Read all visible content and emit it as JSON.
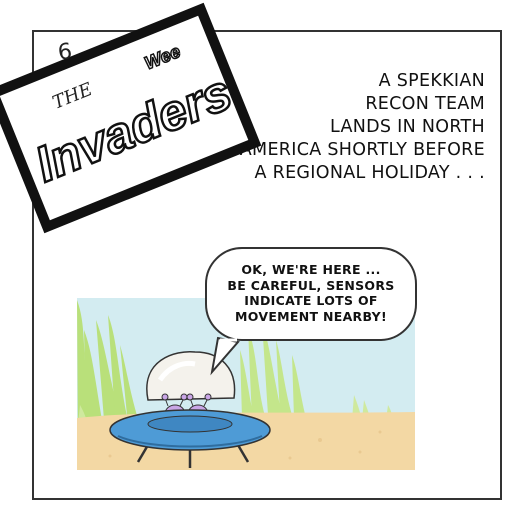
{
  "logo": {
    "line1": "THE",
    "line2": "Wee",
    "line3": "Invaders"
  },
  "page_number": "6",
  "caption": {
    "lines": [
      "A SPEKKIAN",
      "RECON TEAM",
      "LANDS IN NORTH",
      "AMERICA SHORTLY BEFORE",
      "A REGIONAL HOLIDAY . . ."
    ]
  },
  "speech_bubble": {
    "lines": [
      "OK, WE'RE HERE ...",
      "BE CAREFUL, SENSORS",
      "INDICATE LOTS OF",
      "MOVEMENT NEARBY!"
    ]
  },
  "colors": {
    "sky": "#d3ecf1",
    "ground": "#f3d8a4",
    "grass": "#b9e07a",
    "saucer": "#4e9bd6",
    "dome": "#f4f2ec",
    "alien": "#c9a6e6"
  }
}
